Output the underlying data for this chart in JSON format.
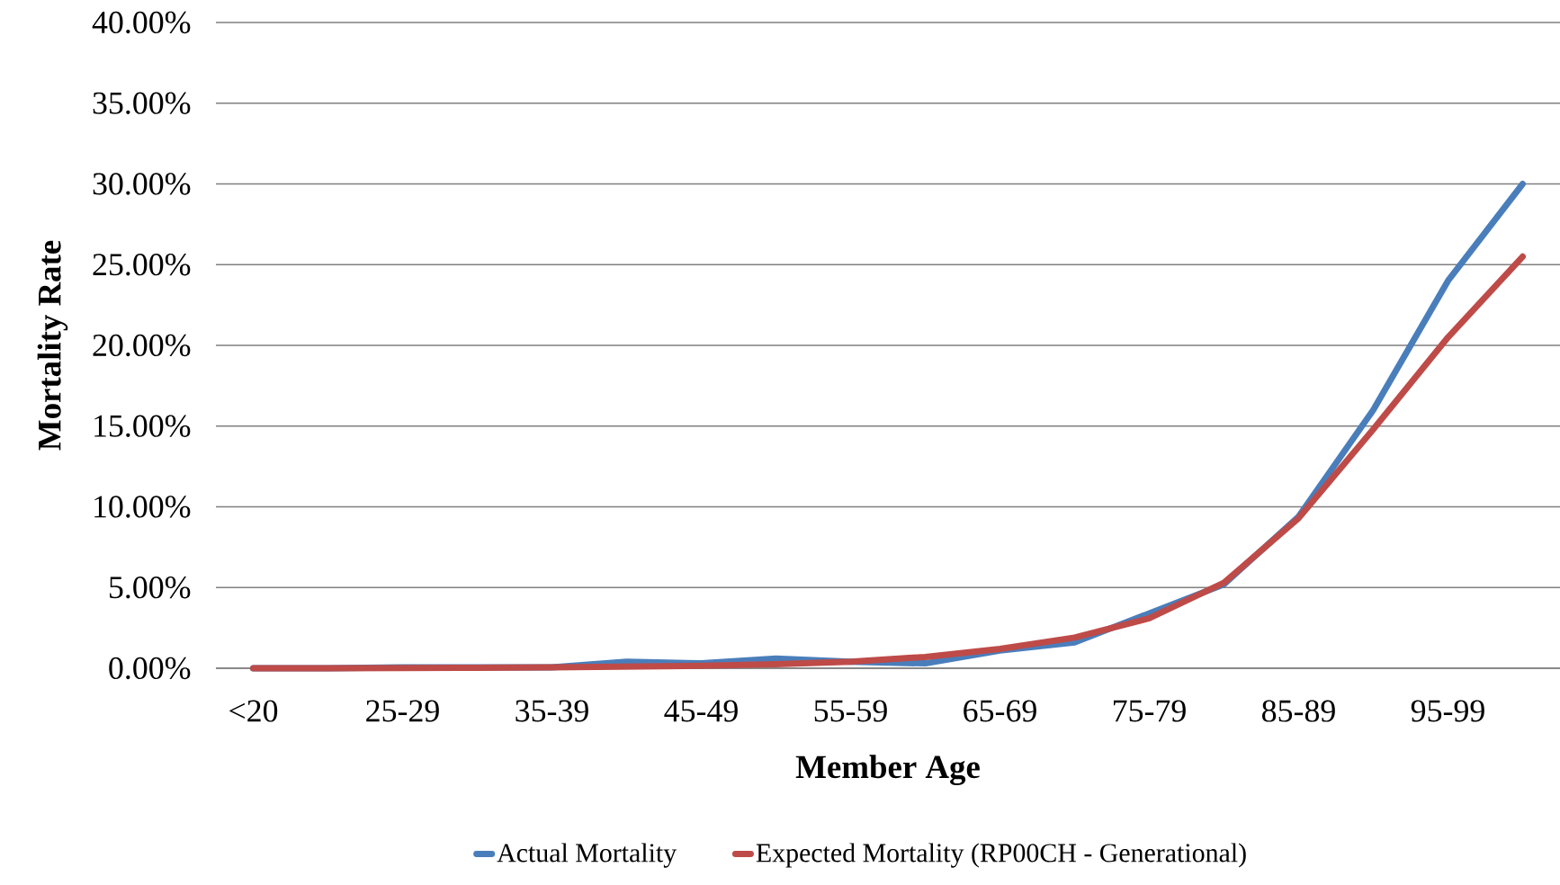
{
  "chart_data": {
    "type": "line",
    "xlabel": "Member Age",
    "ylabel": "Mortality Rate",
    "categories": [
      "<20",
      null,
      "25-29",
      null,
      "35-39",
      null,
      "45-49",
      null,
      "55-59",
      null,
      "65-69",
      null,
      "75-79",
      null,
      "85-89",
      null,
      "95-99",
      null
    ],
    "series": [
      {
        "name": "Actual Mortality",
        "color": "#4a7ebb",
        "values": [
          0,
          0,
          0.05,
          0.05,
          0.05,
          0.4,
          0.3,
          0.6,
          0.4,
          0.3,
          1.1,
          1.6,
          3.4,
          5.2,
          9.4,
          16,
          24,
          30
        ]
      },
      {
        "name": "Expected Mortality (RP00CH - Generational)",
        "color": "#be4b48",
        "values": [
          0,
          0,
          0.02,
          0.03,
          0.05,
          0.1,
          0.15,
          0.25,
          0.4,
          0.7,
          1.2,
          1.9,
          3.1,
          5.3,
          9.3,
          14.8,
          20.5,
          25.5
        ]
      }
    ],
    "ylim": [
      0,
      40
    ],
    "yticks": [
      {
        "value": 0,
        "label": "0.00%"
      },
      {
        "value": 5,
        "label": "5.00%"
      },
      {
        "value": 10,
        "label": "10.00%"
      },
      {
        "value": 15,
        "label": "15.00%"
      },
      {
        "value": 20,
        "label": "20.00%"
      },
      {
        "value": 25,
        "label": "25.00%"
      },
      {
        "value": 30,
        "label": "30.00%"
      },
      {
        "value": 35,
        "label": "35.00%"
      },
      {
        "value": 40,
        "label": "40.00%"
      }
    ],
    "grid": "y",
    "legend": "bottom",
    "marker": "none",
    "line_style": "solid"
  }
}
